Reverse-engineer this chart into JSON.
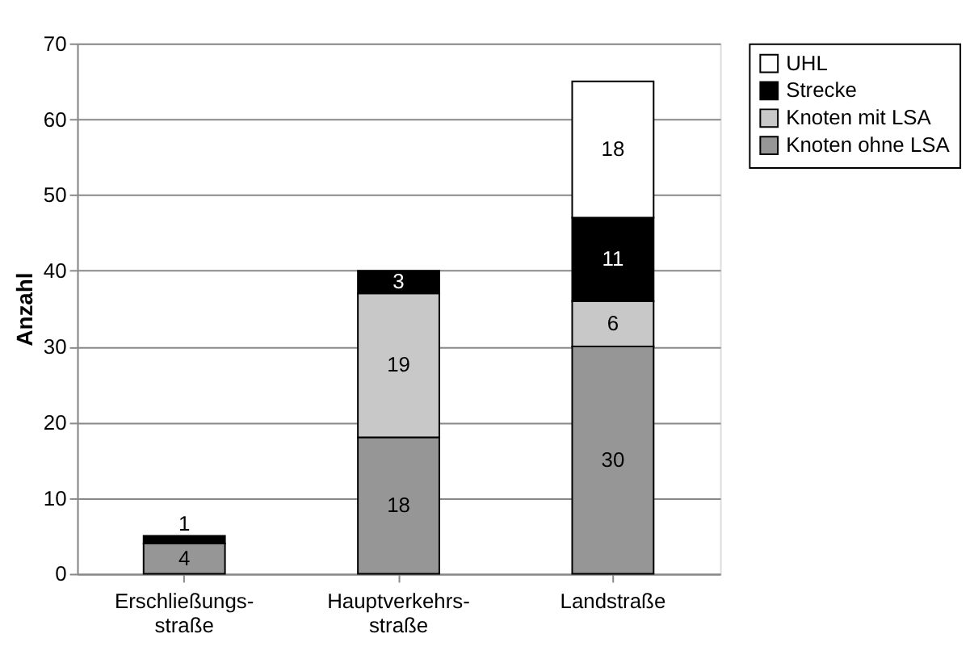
{
  "chart_data": {
    "type": "bar",
    "stacked": true,
    "ylabel": "Anzahl",
    "categories": [
      "Erschließungs-straße",
      "Hauptverkehrs-straße",
      "Landstraße"
    ],
    "series": [
      {
        "name": "Knoten ohne LSA",
        "color": "#969696",
        "values": [
          4,
          18,
          30
        ],
        "value_labels": [
          "4",
          "18",
          "30"
        ]
      },
      {
        "name": "Knoten mit LSA",
        "color": "#c8c8c8",
        "values": [
          null,
          19,
          6
        ],
        "value_labels": [
          null,
          "19",
          "6"
        ]
      },
      {
        "name": "Strecke",
        "color": "#000000",
        "values": [
          1,
          3,
          11
        ],
        "value_labels": [
          "1",
          "3",
          "11"
        ]
      },
      {
        "name": "UHL",
        "color": "#ffffff",
        "values": [
          null,
          null,
          18
        ],
        "value_labels": [
          null,
          null,
          "18"
        ]
      }
    ],
    "ylim": [
      0,
      70
    ],
    "yticks": [
      0,
      10,
      20,
      30,
      40,
      50,
      60,
      70
    ],
    "grid": "y",
    "legend": "right"
  }
}
